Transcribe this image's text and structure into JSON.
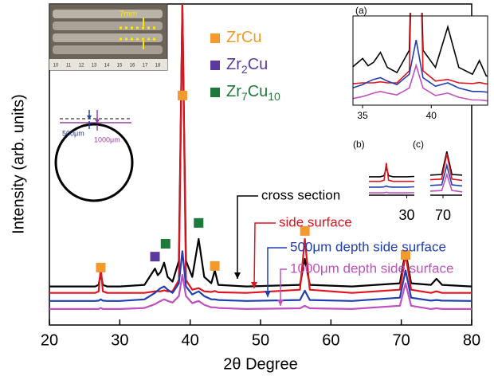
{
  "chart_data": {
    "type": "line",
    "x_label": "2θ Degree",
    "y_label": "Intensity (arb. units)",
    "xlim": [
      20,
      80
    ],
    "xticks": [
      20,
      30,
      40,
      50,
      60,
      70,
      80
    ],
    "ylim": [
      0,
      100
    ],
    "x": [
      20,
      26.5,
      27.0,
      27.3,
      27.6,
      28.2,
      30,
      33.5,
      35.0,
      35.4,
      35.8,
      36.3,
      36.8,
      37.5,
      38.4,
      38.9,
      39.4,
      40.3,
      41.2,
      42.0,
      43.0,
      43.5,
      44.0,
      48,
      55.6,
      56.3,
      57.0,
      63,
      69.8,
      70.6,
      71.4,
      74.2,
      75,
      75.8,
      80
    ],
    "series": [
      {
        "name": "cross section",
        "color": "#000000",
        "values": [
          12,
          12,
          12.5,
          16,
          12.5,
          12,
          12,
          12.5,
          17.6,
          15.5,
          16.5,
          19.4,
          15,
          13.5,
          20,
          100,
          20,
          15,
          26.8,
          15,
          13,
          17,
          12.5,
          12,
          12.5,
          20.6,
          12.5,
          12,
          13,
          23,
          13,
          12.5,
          14.4,
          12.5,
          12
        ]
      },
      {
        "name": "side surface",
        "color": "#e0141e",
        "values": [
          10,
          10,
          10.5,
          18,
          10.5,
          10,
          10,
          10,
          10.5,
          10.5,
          10.5,
          10.8,
          10.5,
          10.5,
          14,
          100,
          14,
          11,
          11.5,
          10.5,
          10.3,
          10.6,
          10.2,
          10,
          11,
          26.8,
          11,
          10,
          11,
          22,
          11,
          10,
          10.5,
          10,
          10
        ]
      },
      {
        "name": "500μm depth side surface",
        "color": "#1f3fb0",
        "values": [
          7.5,
          7.5,
          7.6,
          8,
          7.6,
          7.5,
          7.5,
          8,
          10,
          10.8,
          11.5,
          12,
          11,
          10,
          13,
          23,
          12,
          9.5,
          10.5,
          9,
          8,
          8,
          7.8,
          7.5,
          7.8,
          10.7,
          7.8,
          7.5,
          8.5,
          17,
          8.5,
          7.6,
          7.8,
          7.6,
          7.5
        ]
      },
      {
        "name": "1000μm depth side surface",
        "color": "#c050c0",
        "values": [
          5,
          5,
          5,
          5.3,
          5,
          5,
          5,
          5.3,
          6.5,
          7,
          7.5,
          8,
          7.5,
          7,
          9,
          15.6,
          9,
          6.8,
          7.5,
          6.3,
          5.5,
          5.5,
          5.3,
          5,
          5.2,
          6,
          5.2,
          5,
          6,
          13,
          6,
          5,
          5.2,
          5,
          5
        ]
      }
    ],
    "phases": [
      {
        "name": "ZrCu",
        "color": "#f39a2e",
        "peaks": [
          {
            "x": 27.3,
            "y": 17.9
          },
          {
            "x": 38.9,
            "y": 71.5
          },
          {
            "x": 43.5,
            "y": 18.4
          },
          {
            "x": 56.3,
            "y": 29.3
          },
          {
            "x": 70.6,
            "y": 21.8
          }
        ]
      },
      {
        "name": "Zr2Cu",
        "color": "#5b3a9e",
        "peaks": [
          {
            "x": 35.0,
            "y": 21.3
          }
        ]
      },
      {
        "name": "Zr7Cu10",
        "color": "#1e7a3a",
        "peaks": [
          {
            "x": 36.5,
            "y": 25.3
          },
          {
            "x": 41.2,
            "y": 31.8
          }
        ]
      }
    ],
    "insets": [
      {
        "label": "(a)",
        "xlim": [
          34.3,
          44.1
        ],
        "ylim": [
          4,
          30
        ],
        "xticks": [
          35,
          40
        ]
      },
      {
        "label": "(b)",
        "xlim": [
          25,
          31
        ],
        "ylim": [
          4,
          30
        ],
        "xticks": [
          30
        ]
      },
      {
        "label": "(c)",
        "xlim": [
          68,
          73
        ],
        "ylim": [
          4,
          30
        ],
        "xticks": [
          70
        ]
      }
    ]
  },
  "photo": {
    "scale_label": "7mm",
    "ruler": [
      "10",
      "11",
      "12",
      "13",
      "14",
      "15",
      "16",
      "17",
      "18"
    ]
  },
  "schematic": {
    "labels": [
      "500μm",
      "1000μm"
    ]
  }
}
